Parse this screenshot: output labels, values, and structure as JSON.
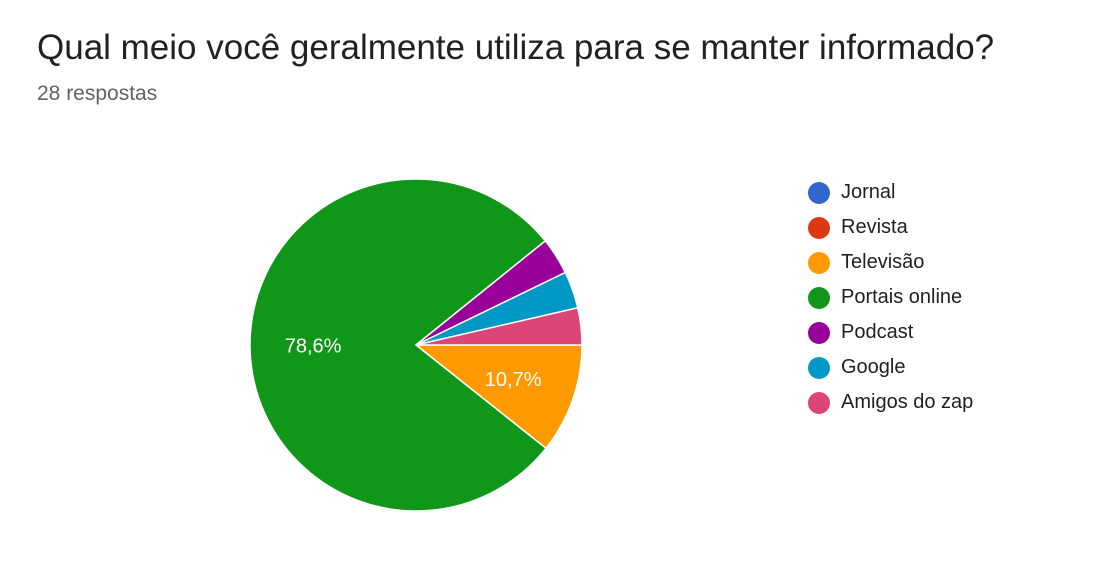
{
  "title": "Qual meio você geralmente utiliza para se manter informado?",
  "subtitle": "28 respostas",
  "chart_data": {
    "type": "pie",
    "title": "Qual meio você geralmente utiliza para se manter informado?",
    "total_responses": 28,
    "categories": [
      "Jornal",
      "Revista",
      "Televisão",
      "Portais online",
      "Podcast",
      "Google",
      "Amigos do zap"
    ],
    "values": [
      0,
      0,
      10.7,
      78.6,
      3.6,
      3.6,
      3.6
    ],
    "unit": "%",
    "colors": [
      "#3366cc",
      "#dc3912",
      "#ff9900",
      "#109618",
      "#990099",
      "#0099c6",
      "#dd4477"
    ],
    "data_labels": [
      "",
      "",
      "",
      "78,6%",
      "",
      "",
      ""
    ],
    "data_labels_shown": {
      "Portais online": "78,6%",
      "Televisão": "10,7%"
    },
    "legend_position": "right"
  }
}
